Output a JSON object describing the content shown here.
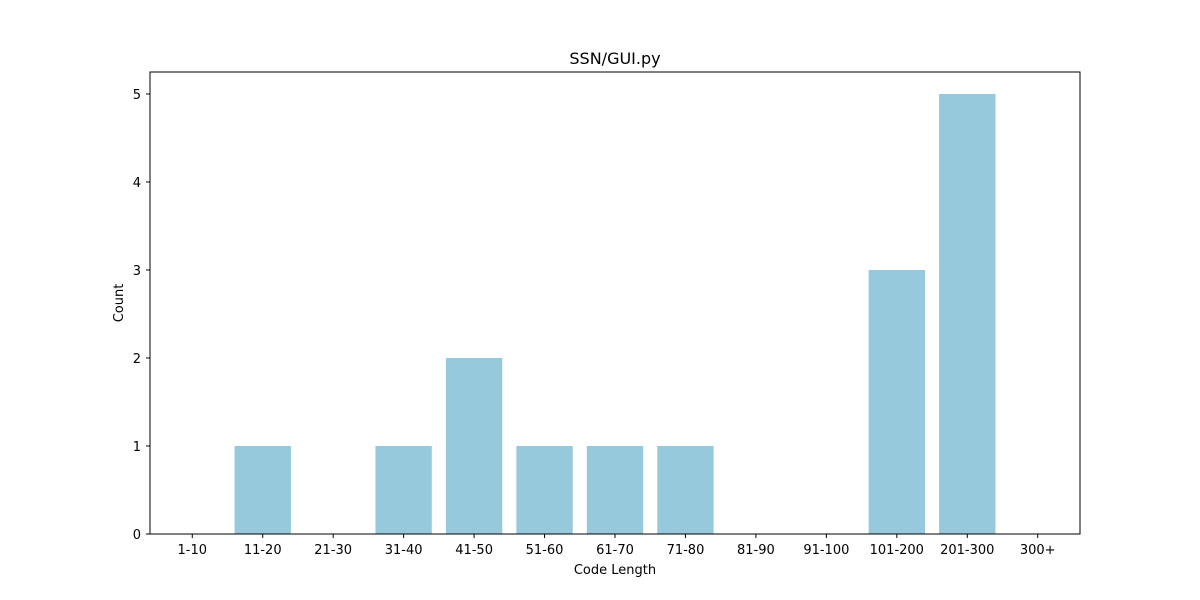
{
  "chart_data": {
    "type": "bar",
    "title": "SSN/GUI.py",
    "xlabel": "Code Length",
    "ylabel": "Count",
    "categories": [
      "1-10",
      "11-20",
      "21-30",
      "31-40",
      "41-50",
      "51-60",
      "61-70",
      "71-80",
      "81-90",
      "91-100",
      "101-200",
      "201-300",
      "300+"
    ],
    "values": [
      0,
      1,
      0,
      1,
      2,
      1,
      1,
      1,
      0,
      0,
      3,
      5,
      0
    ],
    "ylim": [
      0,
      5.25
    ],
    "yticks": [
      "0",
      "1",
      "2",
      "3",
      "4",
      "5"
    ],
    "grid": false,
    "bar_color": "#96c9dc"
  }
}
